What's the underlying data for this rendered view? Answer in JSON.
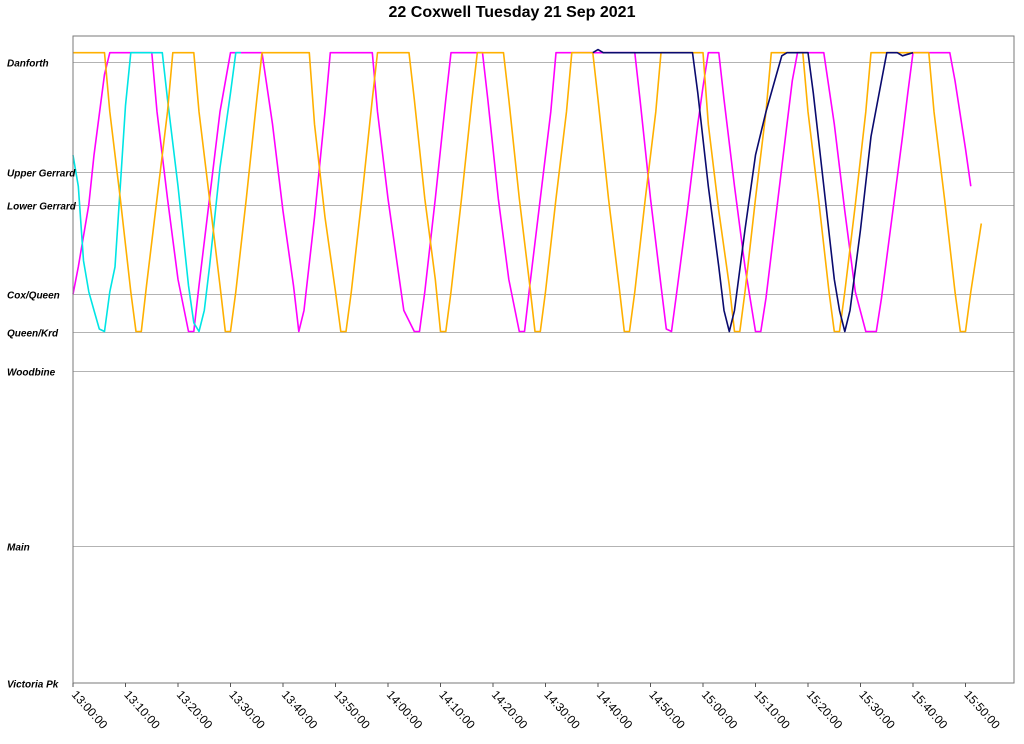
{
  "chart_data": {
    "type": "line",
    "title": "22 Coxwell Tuesday 21 Sep 2021",
    "xlabel": "",
    "ylabel": "",
    "x_ticks": [
      "13:00:00",
      "13:10:00",
      "13:20:00",
      "13:30:00",
      "13:40:00",
      "13:50:00",
      "14:00:00",
      "14:10:00",
      "14:20:00",
      "14:30:00",
      "14:40:00",
      "14:50:00",
      "15:00:00",
      "15:10:00",
      "15:20:00",
      "15:30:00",
      "15:40:00",
      "15:50:00"
    ],
    "xlim": [
      "13:00:00",
      "15:58:00"
    ],
    "stops": [
      {
        "name": "Danforth",
        "pos": 0.0
      },
      {
        "name": "Upper Gerrard",
        "pos": 0.177
      },
      {
        "name": "Lower Gerrard",
        "pos": 0.231
      },
      {
        "name": "Cox/Queen",
        "pos": 0.374
      },
      {
        "name": "Queen/Krd",
        "pos": 0.434
      },
      {
        "name": "Woodbine",
        "pos": 0.498
      },
      {
        "name": "Main",
        "pos": 0.779
      },
      {
        "name": "Victoria Pk",
        "pos": 1.0
      }
    ],
    "grid": true,
    "legend": "none",
    "series": [
      {
        "color": "#ff00ff",
        "points": [
          [
            "13:00",
            0.374
          ],
          [
            "13:01",
            0.33
          ],
          [
            "13:03",
            0.23
          ],
          [
            "13:04",
            0.15
          ],
          [
            "13:06",
            0.02
          ],
          [
            "13:07",
            -0.015
          ],
          [
            "13:15",
            -0.015
          ],
          [
            "13:16",
            0.08
          ],
          [
            "13:18",
            0.22
          ],
          [
            "13:20",
            0.35
          ],
          [
            "13:22",
            0.434
          ],
          [
            "13:23",
            0.434
          ],
          [
            "13:24",
            0.36
          ],
          [
            "13:26",
            0.22
          ],
          [
            "13:28",
            0.08
          ],
          [
            "13:30",
            -0.015
          ],
          [
            "13:36",
            -0.015
          ],
          [
            "13:38",
            0.1
          ],
          [
            "13:40",
            0.24
          ],
          [
            "13:42",
            0.36
          ],
          [
            "13:43",
            0.434
          ],
          [
            "13:44",
            0.4
          ],
          [
            "13:46",
            0.25
          ],
          [
            "13:48",
            0.08
          ],
          [
            "13:49",
            -0.015
          ],
          [
            "13:57",
            -0.015
          ],
          [
            "13:58",
            0.08
          ],
          [
            "14:00",
            0.22
          ],
          [
            "14:02",
            0.34
          ],
          [
            "14:03",
            0.4
          ],
          [
            "14:05",
            0.434
          ],
          [
            "14:06",
            0.434
          ],
          [
            "14:07",
            0.37
          ],
          [
            "14:09",
            0.22
          ],
          [
            "14:11",
            0.06
          ],
          [
            "14:12",
            -0.015
          ],
          [
            "14:18",
            -0.015
          ],
          [
            "14:19",
            0.06
          ],
          [
            "14:21",
            0.22
          ],
          [
            "14:23",
            0.35
          ],
          [
            "14:25",
            0.434
          ],
          [
            "14:26",
            0.434
          ],
          [
            "14:27",
            0.36
          ],
          [
            "14:29",
            0.22
          ],
          [
            "14:31",
            0.08
          ],
          [
            "14:32",
            -0.015
          ],
          [
            "14:43",
            -0.015
          ],
          [
            "14:47",
            -0.015
          ],
          [
            "14:48",
            0.06
          ],
          [
            "14:50",
            0.22
          ],
          [
            "14:52",
            0.36
          ],
          [
            "14:53",
            0.43
          ],
          [
            "14:54",
            0.434
          ],
          [
            "14:55",
            0.37
          ],
          [
            "14:57",
            0.24
          ],
          [
            "14:59",
            0.1
          ],
          [
            "15:00",
            0.04
          ],
          [
            "15:01",
            -0.015
          ],
          [
            "15:03",
            -0.015
          ],
          [
            "15:04",
            0.06
          ],
          [
            "15:06",
            0.2
          ],
          [
            "15:08",
            0.33
          ],
          [
            "15:10",
            0.434
          ],
          [
            "15:11",
            0.434
          ],
          [
            "15:12",
            0.38
          ],
          [
            "15:14",
            0.24
          ],
          [
            "15:16",
            0.1
          ],
          [
            "15:17",
            0.03
          ],
          [
            "15:18",
            -0.015
          ],
          [
            "15:23",
            -0.015
          ],
          [
            "15:25",
            0.1
          ],
          [
            "15:27",
            0.24
          ],
          [
            "15:29",
            0.37
          ],
          [
            "15:31",
            0.434
          ],
          [
            "15:33",
            0.434
          ],
          [
            "15:34",
            0.38
          ],
          [
            "15:36",
            0.25
          ],
          [
            "15:38",
            0.12
          ],
          [
            "15:39",
            0.05
          ],
          [
            "15:40",
            -0.015
          ],
          [
            "15:47",
            -0.015
          ],
          [
            "15:48",
            0.03
          ],
          [
            "15:50",
            0.14
          ],
          [
            "15:51",
            0.2
          ]
        ]
      },
      {
        "color": "#00e5e5",
        "points": [
          [
            "13:00",
            0.15
          ],
          [
            "13:01",
            0.2
          ],
          [
            "13:02",
            0.32
          ],
          [
            "13:03",
            0.37
          ],
          [
            "13:04",
            0.4
          ],
          [
            "13:05",
            0.43
          ],
          [
            "13:06",
            0.434
          ],
          [
            "13:07",
            0.37
          ],
          [
            "13:08",
            0.33
          ],
          [
            "13:09",
            0.2
          ],
          [
            "13:10",
            0.07
          ],
          [
            "13:11",
            -0.015
          ],
          [
            "13:17",
            -0.015
          ],
          [
            "13:18",
            0.06
          ],
          [
            "13:20",
            0.2
          ],
          [
            "13:22",
            0.36
          ],
          [
            "13:23",
            0.42
          ],
          [
            "13:24",
            0.434
          ],
          [
            "13:25",
            0.4
          ],
          [
            "13:26",
            0.33
          ],
          [
            "13:28",
            0.17
          ],
          [
            "13:30",
            0.05
          ],
          [
            "13:31",
            -0.015
          ],
          [
            "13:32",
            -0.015
          ]
        ]
      },
      {
        "color": "#ffb000",
        "points": [
          [
            "13:00",
            -0.015
          ],
          [
            "13:06",
            -0.015
          ],
          [
            "13:07",
            0.08
          ],
          [
            "13:09",
            0.22
          ],
          [
            "13:11",
            0.37
          ],
          [
            "13:12",
            0.434
          ],
          [
            "13:13",
            0.434
          ],
          [
            "13:14",
            0.36
          ],
          [
            "13:16",
            0.22
          ],
          [
            "13:18",
            0.08
          ],
          [
            "13:19",
            -0.015
          ],
          [
            "13:23",
            -0.015
          ],
          [
            "13:24",
            0.08
          ],
          [
            "13:26",
            0.22
          ],
          [
            "13:28",
            0.36
          ],
          [
            "13:29",
            0.434
          ],
          [
            "13:30",
            0.434
          ],
          [
            "13:31",
            0.37
          ],
          [
            "13:33",
            0.22
          ],
          [
            "13:35",
            0.06
          ],
          [
            "13:36",
            -0.015
          ],
          [
            "13:45",
            -0.015
          ],
          [
            "13:46",
            0.1
          ],
          [
            "13:48",
            0.25
          ],
          [
            "13:50",
            0.37
          ],
          [
            "13:51",
            0.434
          ],
          [
            "13:52",
            0.434
          ],
          [
            "13:53",
            0.37
          ],
          [
            "13:55",
            0.22
          ],
          [
            "13:57",
            0.06
          ],
          [
            "13:58",
            -0.015
          ],
          [
            "14:04",
            -0.015
          ],
          [
            "14:05",
            0.06
          ],
          [
            "14:07",
            0.22
          ],
          [
            "14:09",
            0.35
          ],
          [
            "14:10",
            0.434
          ],
          [
            "14:11",
            0.434
          ],
          [
            "14:12",
            0.37
          ],
          [
            "14:14",
            0.22
          ],
          [
            "14:16",
            0.06
          ],
          [
            "14:17",
            -0.015
          ],
          [
            "14:22",
            -0.015
          ],
          [
            "14:23",
            0.06
          ],
          [
            "14:25",
            0.22
          ],
          [
            "14:27",
            0.36
          ],
          [
            "14:28",
            0.434
          ],
          [
            "14:29",
            0.434
          ],
          [
            "14:30",
            0.37
          ],
          [
            "14:32",
            0.22
          ],
          [
            "14:34",
            0.08
          ],
          [
            "14:35",
            -0.015
          ],
          [
            "14:39",
            -0.015
          ],
          [
            "14:40",
            0.06
          ],
          [
            "14:42",
            0.22
          ],
          [
            "14:44",
            0.36
          ],
          [
            "14:45",
            0.434
          ],
          [
            "14:46",
            0.434
          ],
          [
            "14:47",
            0.37
          ],
          [
            "14:49",
            0.22
          ],
          [
            "14:51",
            0.08
          ],
          [
            "14:52",
            -0.015
          ],
          [
            "15:00",
            -0.015
          ],
          [
            "15:01",
            0.1
          ],
          [
            "15:03",
            0.24
          ],
          [
            "15:05",
            0.36
          ],
          [
            "15:06",
            0.434
          ],
          [
            "15:07",
            0.434
          ],
          [
            "15:08",
            0.37
          ],
          [
            "15:10",
            0.22
          ],
          [
            "15:12",
            0.08
          ],
          [
            "15:13",
            -0.015
          ],
          [
            "15:19",
            -0.015
          ],
          [
            "15:20",
            0.08
          ],
          [
            "15:22",
            0.22
          ],
          [
            "15:24",
            0.37
          ],
          [
            "15:25",
            0.434
          ],
          [
            "15:26",
            0.434
          ],
          [
            "15:27",
            0.37
          ],
          [
            "15:29",
            0.23
          ],
          [
            "15:31",
            0.08
          ],
          [
            "15:32",
            -0.015
          ],
          [
            "15:43",
            -0.015
          ],
          [
            "15:44",
            0.08
          ],
          [
            "15:46",
            0.22
          ],
          [
            "15:48",
            0.37
          ],
          [
            "15:49",
            0.434
          ],
          [
            "15:50",
            0.434
          ],
          [
            "15:51",
            0.37
          ],
          [
            "15:53",
            0.26
          ]
        ]
      },
      {
        "color": "#0a0a6e",
        "points": [
          [
            "14:39",
            -0.015
          ],
          [
            "14:40",
            -0.02
          ],
          [
            "14:41",
            -0.015
          ],
          [
            "14:42",
            -0.015
          ],
          [
            "14:43",
            -0.015
          ],
          [
            "14:56",
            -0.015
          ],
          [
            "14:58",
            -0.015
          ],
          [
            "14:59",
            0.05
          ],
          [
            "15:01",
            0.2
          ],
          [
            "15:03",
            0.33
          ],
          [
            "15:04",
            0.4
          ],
          [
            "15:05",
            0.434
          ],
          [
            "15:06",
            0.4
          ],
          [
            "15:08",
            0.27
          ],
          [
            "15:10",
            0.15
          ],
          [
            "15:12",
            0.08
          ],
          [
            "15:14",
            0.02
          ],
          [
            "15:15",
            -0.01
          ],
          [
            "15:16",
            -0.015
          ],
          [
            "15:20",
            -0.015
          ],
          [
            "15:21",
            0.05
          ],
          [
            "15:23",
            0.2
          ],
          [
            "15:25",
            0.35
          ],
          [
            "15:26",
            0.4
          ],
          [
            "15:27",
            0.434
          ],
          [
            "15:28",
            0.4
          ],
          [
            "15:30",
            0.27
          ],
          [
            "15:32",
            0.12
          ],
          [
            "15:34",
            0.03
          ],
          [
            "15:35",
            -0.015
          ],
          [
            "15:37",
            -0.015
          ],
          [
            "15:38",
            -0.01
          ],
          [
            "15:40",
            -0.015
          ]
        ]
      }
    ]
  }
}
